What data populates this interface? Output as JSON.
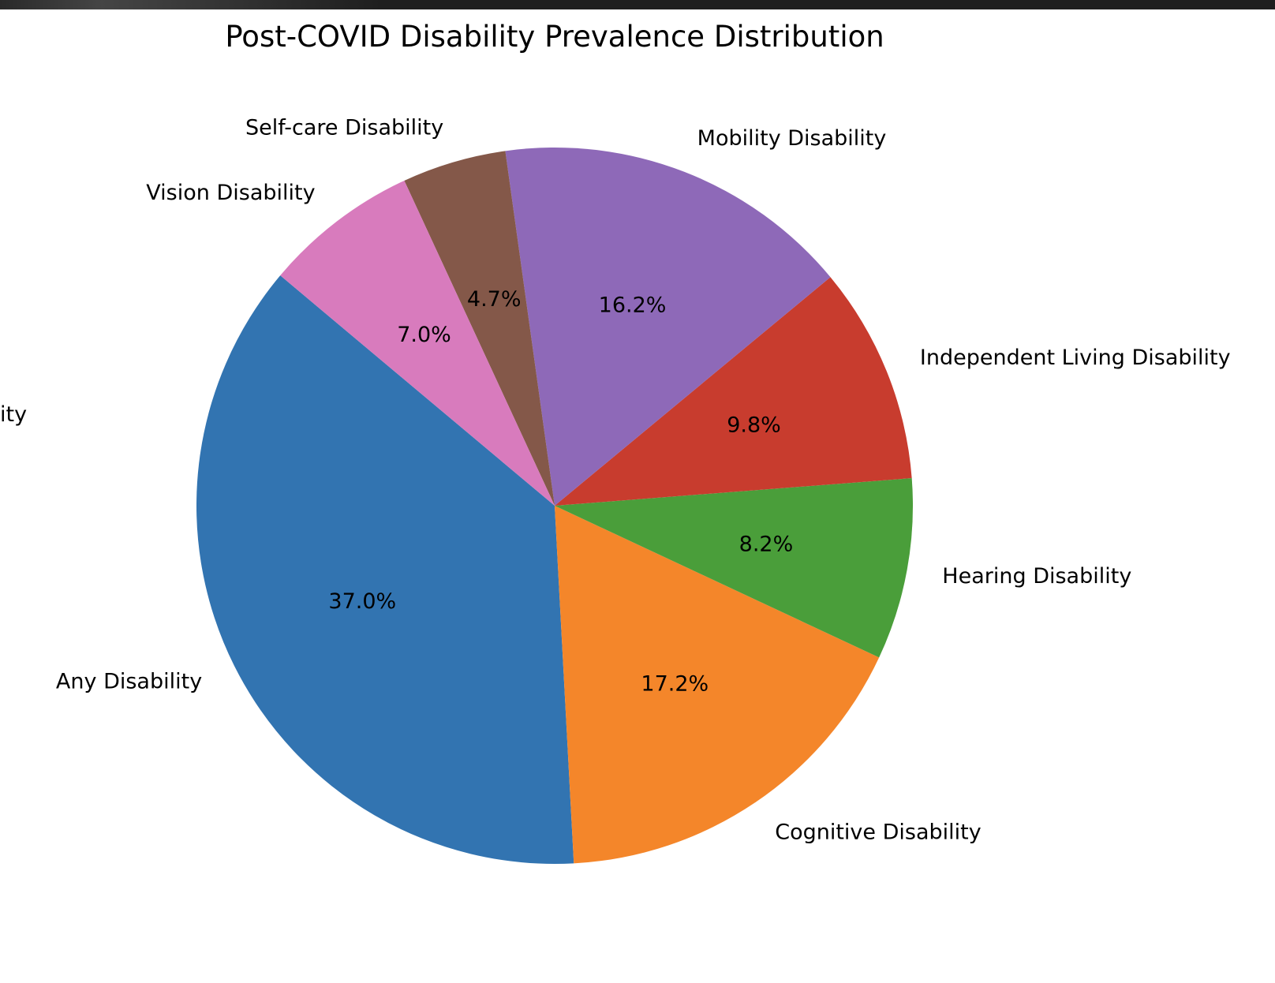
{
  "chart_data": {
    "type": "pie",
    "title": "Post-COVID Disability Prevalence Distribution",
    "categories": [
      "Any Disability",
      "Cognitive Disability",
      "Hearing Disability",
      "Independent Living Disability",
      "Mobility Disability",
      "Self-care Disability",
      "Vision Disability"
    ],
    "values": [
      37.0,
      17.2,
      8.2,
      9.8,
      16.2,
      4.7,
      7.0
    ],
    "value_labels": [
      "37.0%",
      "17.2%",
      "8.2%",
      "9.8%",
      "16.2%",
      "4.7%",
      "7.0%"
    ],
    "colors": [
      "#3274b1",
      "#f4862a",
      "#4a9e3a",
      "#c83c2e",
      "#8e69b8",
      "#845849",
      "#d87bbd"
    ],
    "clipped_label_fragment": "ity",
    "legend": "none",
    "grid": false
  }
}
